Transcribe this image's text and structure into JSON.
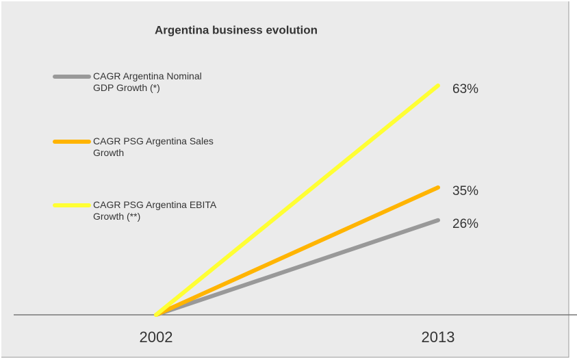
{
  "chart_data": {
    "type": "line",
    "title": "Argentina business evolution",
    "categories": [
      "2002",
      "2013"
    ],
    "series": [
      {
        "name": "CAGR Argentina Nominal GDP Growth (*)",
        "color": "#999999",
        "values": [
          0,
          26
        ],
        "value_labels": [
          null,
          "26%"
        ]
      },
      {
        "name": "CAGR PSG Argentina Sales Growth",
        "color": "#ffb400",
        "values": [
          0,
          35
        ],
        "value_labels": [
          null,
          "35%"
        ]
      },
      {
        "name": "CAGR PSG Argentina EBITA Growth (**)",
        "color": "#ffff33",
        "values": [
          0,
          63
        ],
        "value_labels": [
          null,
          "63%"
        ]
      }
    ],
    "ylim": [
      0,
      63
    ],
    "legend": "upper left"
  }
}
